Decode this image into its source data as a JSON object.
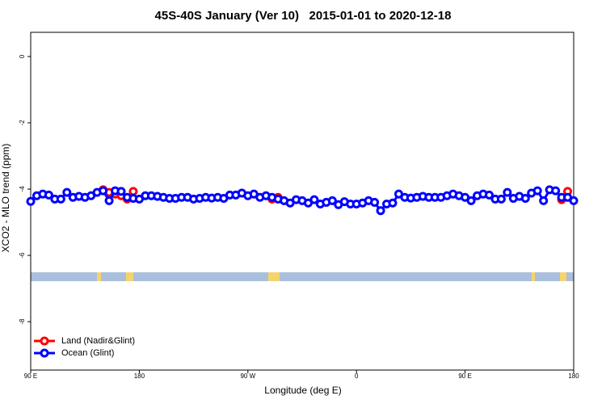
{
  "chart_data": {
    "type": "line",
    "title": "45S-40S January (Ver 10)   2015-01-01 to 2020-12-18",
    "x_label": "Longitude (deg E)",
    "y_label": "XCO2 - MLO trend (ppm)",
    "x": [
      90,
      95,
      100,
      105,
      110,
      115,
      120,
      125,
      130,
      135,
      140,
      145,
      150,
      155,
      160,
      165,
      170,
      175,
      180,
      185,
      190,
      195,
      200,
      205,
      210,
      215,
      220,
      225,
      230,
      235,
      240,
      245,
      250,
      255,
      260,
      265,
      270,
      275,
      280,
      285,
      290,
      295,
      300,
      305,
      310,
      315,
      320,
      325,
      330,
      335,
      340,
      345,
      350,
      355,
      360,
      365,
      370,
      375,
      380,
      385,
      390,
      395,
      400,
      405,
      410,
      415,
      420,
      425,
      430,
      435,
      440,
      445,
      450,
      455,
      460,
      465,
      470,
      475,
      480,
      485,
      490,
      495,
      500,
      505,
      510,
      515,
      520,
      525,
      530,
      535,
      540
    ],
    "series": [
      {
        "name": "Land (Nadir&Glint)",
        "color": "#ff0000",
        "values": [
          null,
          null,
          null,
          null,
          null,
          null,
          null,
          null,
          null,
          null,
          null,
          null,
          -4.02,
          -4.1,
          -4.15,
          -4.2,
          -4.3,
          -4.07,
          null,
          null,
          null,
          null,
          null,
          null,
          null,
          null,
          null,
          null,
          null,
          null,
          null,
          null,
          null,
          null,
          null,
          null,
          null,
          null,
          null,
          null,
          -4.3,
          -4.25,
          null,
          null,
          null,
          null,
          null,
          null,
          null,
          null,
          null,
          null,
          null,
          null,
          null,
          null,
          null,
          null,
          null,
          null,
          null,
          null,
          null,
          null,
          null,
          null,
          null,
          null,
          null,
          null,
          null,
          null,
          null,
          null,
          null,
          null,
          null,
          null,
          null,
          null,
          null,
          null,
          null,
          null,
          null,
          null,
          null,
          null,
          -4.32,
          -4.07,
          null
        ]
      },
      {
        "name": "Ocean (Glint)",
        "color": "#0000ff",
        "values": [
          -4.37,
          -4.2,
          -4.15,
          -4.18,
          -4.3,
          -4.3,
          -4.1,
          -4.25,
          -4.22,
          -4.25,
          -4.2,
          -4.1,
          -4.05,
          -4.35,
          -4.05,
          -4.07,
          -4.25,
          -4.28,
          -4.3,
          -4.2,
          -4.2,
          -4.22,
          -4.25,
          -4.28,
          -4.28,
          -4.25,
          -4.25,
          -4.3,
          -4.28,
          -4.25,
          -4.27,
          -4.25,
          -4.28,
          -4.18,
          -4.18,
          -4.12,
          -4.2,
          -4.15,
          -4.25,
          -4.2,
          -4.25,
          -4.3,
          -4.35,
          -4.42,
          -4.32,
          -4.35,
          -4.42,
          -4.32,
          -4.45,
          -4.4,
          -4.35,
          -4.47,
          -4.38,
          -4.45,
          -4.45,
          -4.42,
          -4.35,
          -4.4,
          -4.65,
          -4.45,
          -4.42,
          -4.15,
          -4.25,
          -4.27,
          -4.25,
          -4.22,
          -4.25,
          -4.25,
          -4.25,
          -4.2,
          -4.15,
          -4.2,
          -4.25,
          -4.35,
          -4.2,
          -4.15,
          -4.18,
          -4.3,
          -4.3,
          -4.1,
          -4.28,
          -4.22,
          -4.28,
          -4.12,
          -4.05,
          -4.35,
          -4.02,
          -4.05,
          -4.25,
          -4.25,
          -4.35
        ]
      }
    ],
    "xlim": [
      90,
      540
    ],
    "ylim": [
      -9.46,
      0.73
    ],
    "xticks": [
      {
        "value": 90,
        "label": "90 E"
      },
      {
        "value": 180,
        "label": "180"
      },
      {
        "value": 270,
        "label": "90 W"
      },
      {
        "value": 360,
        "label": "0"
      },
      {
        "value": 450,
        "label": "90 E"
      },
      {
        "value": 540,
        "label": "180"
      }
    ],
    "yticks": [
      0,
      -2,
      -4,
      -6,
      -8
    ],
    "legend": "bottom-left"
  }
}
